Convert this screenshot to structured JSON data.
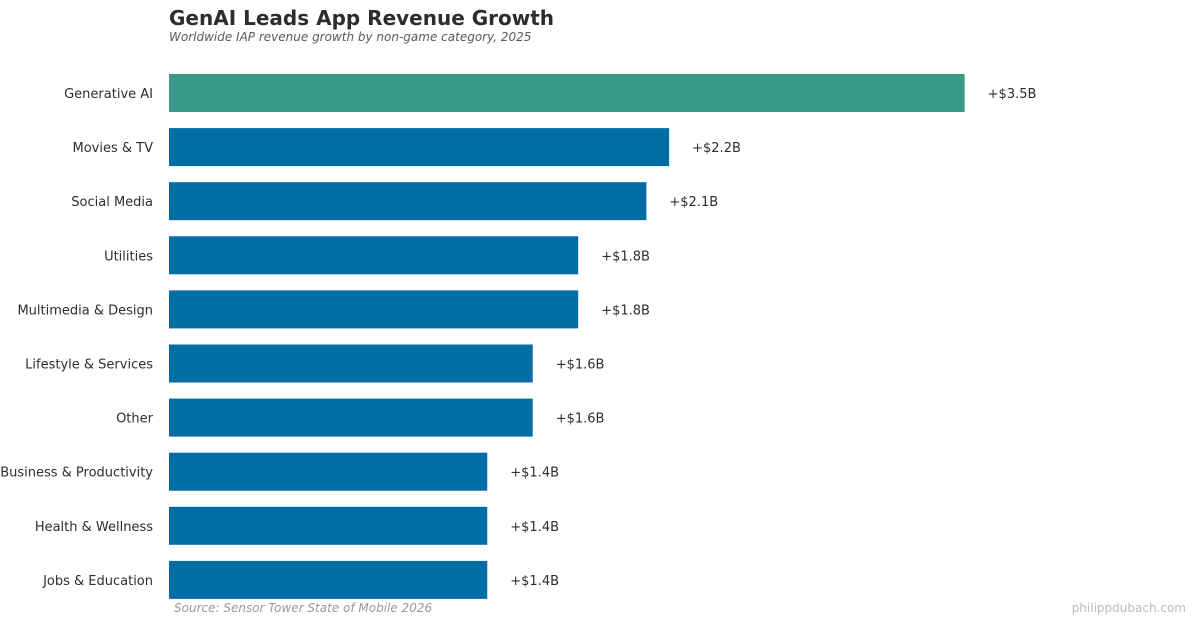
{
  "chart_data": {
    "type": "bar",
    "orientation": "horizontal",
    "title": "GenAI Leads App Revenue Growth",
    "subtitle": "Worldwide IAP revenue growth by non-game category, 2025",
    "categories": [
      "Generative AI",
      "Movies & TV",
      "Social Media",
      "Utilities",
      "Multimedia & Design",
      "Lifestyle & Services",
      "Other",
      "Business & Productivity",
      "Health & Wellness",
      "Jobs & Education"
    ],
    "values": [
      3.5,
      2.2,
      2.1,
      1.8,
      1.8,
      1.6,
      1.6,
      1.4,
      1.4,
      1.4
    ],
    "data_labels": [
      "+$3.5B",
      "+$2.2B",
      "+$2.1B",
      "+$1.8B",
      "+$1.8B",
      "+$1.6B",
      "+$1.6B",
      "+$1.4B",
      "+$1.4B",
      "+$1.4B"
    ],
    "unit": "USD billions",
    "xlim": [
      0,
      4.5
    ],
    "grid": false,
    "colors": {
      "highlight": "#3a9a8a",
      "default": "#006da5"
    },
    "highlight_index": 0
  },
  "footer": {
    "source": "Source: Sensor Tower State of Mobile 2026",
    "credit": "philippdubach.com"
  }
}
